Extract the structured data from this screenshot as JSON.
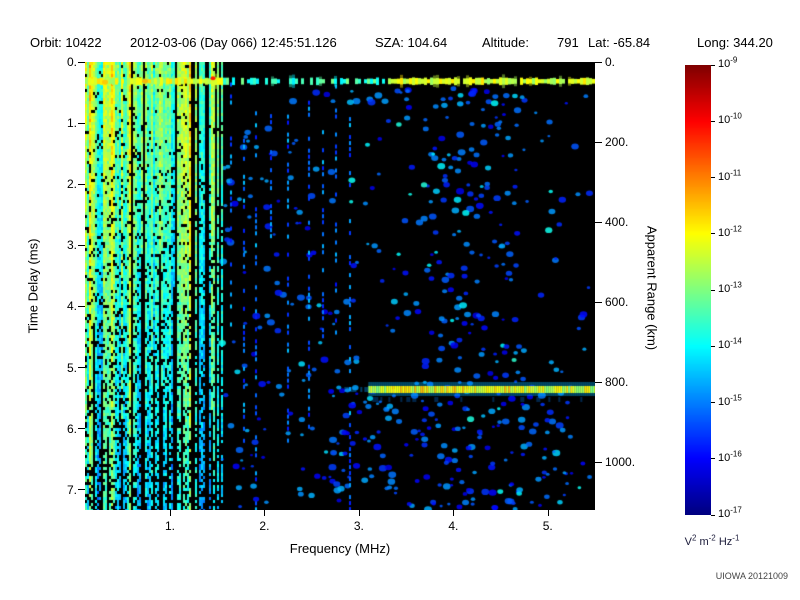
{
  "header": {
    "orbit": "Orbit: 10422",
    "datetime": "2012-03-06 (Day 066) 12:45:51.126",
    "sza": "SZA: 104.64",
    "altitude_label": "Altitude:",
    "altitude_value": "791",
    "lat": "Lat: -65.84",
    "long": "Long: 344.20"
  },
  "footer": {
    "credit": "UIOWA 20121009"
  },
  "chart_data": {
    "type": "heatmap",
    "title": "",
    "xlabel": "Frequency (MHz)",
    "ylabel_left": "Time Delay (ms)",
    "ylabel_right": "Apparent Range (km)",
    "freq_mhz_range": [
      0.1,
      5.5
    ],
    "time_delay_ms_range": [
      0,
      7.33
    ],
    "apparent_range_km_range": [
      0,
      1120
    ],
    "background": "#000000",
    "colormap": "jet",
    "x_ticks": [
      {
        "v": 1,
        "label": "1."
      },
      {
        "v": 2,
        "label": "2."
      },
      {
        "v": 3,
        "label": "3."
      },
      {
        "v": 4,
        "label": "4."
      },
      {
        "v": 5,
        "label": "5."
      }
    ],
    "y_ticks_ms": [
      {
        "v": 0,
        "label": "0."
      },
      {
        "v": 1,
        "label": "1."
      },
      {
        "v": 2,
        "label": "2."
      },
      {
        "v": 3,
        "label": "3."
      },
      {
        "v": 4,
        "label": "4."
      },
      {
        "v": 5,
        "label": "5."
      },
      {
        "v": 6,
        "label": "6."
      },
      {
        "v": 7,
        "label": "7."
      }
    ],
    "y_ticks_km": [
      {
        "v": 0,
        "label": "0."
      },
      {
        "v": 200,
        "label": "200."
      },
      {
        "v": 400,
        "label": "400."
      },
      {
        "v": 600,
        "label": "600."
      },
      {
        "v": 800,
        "label": "800."
      },
      {
        "v": 1000,
        "label": "1000."
      }
    ],
    "colorbar": {
      "scale": "log",
      "max": "1e-9",
      "min": "1e-17",
      "tick_exponents": [
        -9,
        -10,
        -11,
        -12,
        -13,
        -14,
        -15,
        -16,
        -17
      ],
      "unit_parts": [
        {
          "base": "V",
          "exp": "2"
        },
        {
          "base": "m",
          "exp": "-2"
        },
        {
          "base": "Hz",
          "exp": "-1"
        }
      ]
    },
    "features": [
      {
        "id": "plasma-stripes",
        "type": "vertical-stripes",
        "freq_mhz": [
          0.1,
          1.55
        ],
        "delay_ms": [
          0,
          7.33
        ],
        "intensity": "strong"
      },
      {
        "id": "near-range-band",
        "type": "horizontal-band",
        "freq_mhz": [
          0.1,
          5.5
        ],
        "delay_ms": [
          0.18,
          0.45
        ],
        "intensity": "strong"
      },
      {
        "id": "ground-echo",
        "type": "horizontal-band",
        "freq_mhz": [
          3.1,
          5.5
        ],
        "delay_ms": [
          5.2,
          5.5
        ],
        "apparent_range_km": 800,
        "intensity": "strong"
      },
      {
        "id": "diffuse-scatter",
        "type": "speckle",
        "freq_mhz": [
          1.55,
          5.5
        ],
        "delay_ms": [
          0.4,
          7.33
        ],
        "intensity": "weak"
      },
      {
        "id": "faint-streaks",
        "type": "vertical-streaks",
        "freq_mhz": [
          1.6,
          3.0
        ],
        "delay_ms": [
          0.3,
          7.0
        ],
        "intensity": "weak"
      }
    ]
  }
}
